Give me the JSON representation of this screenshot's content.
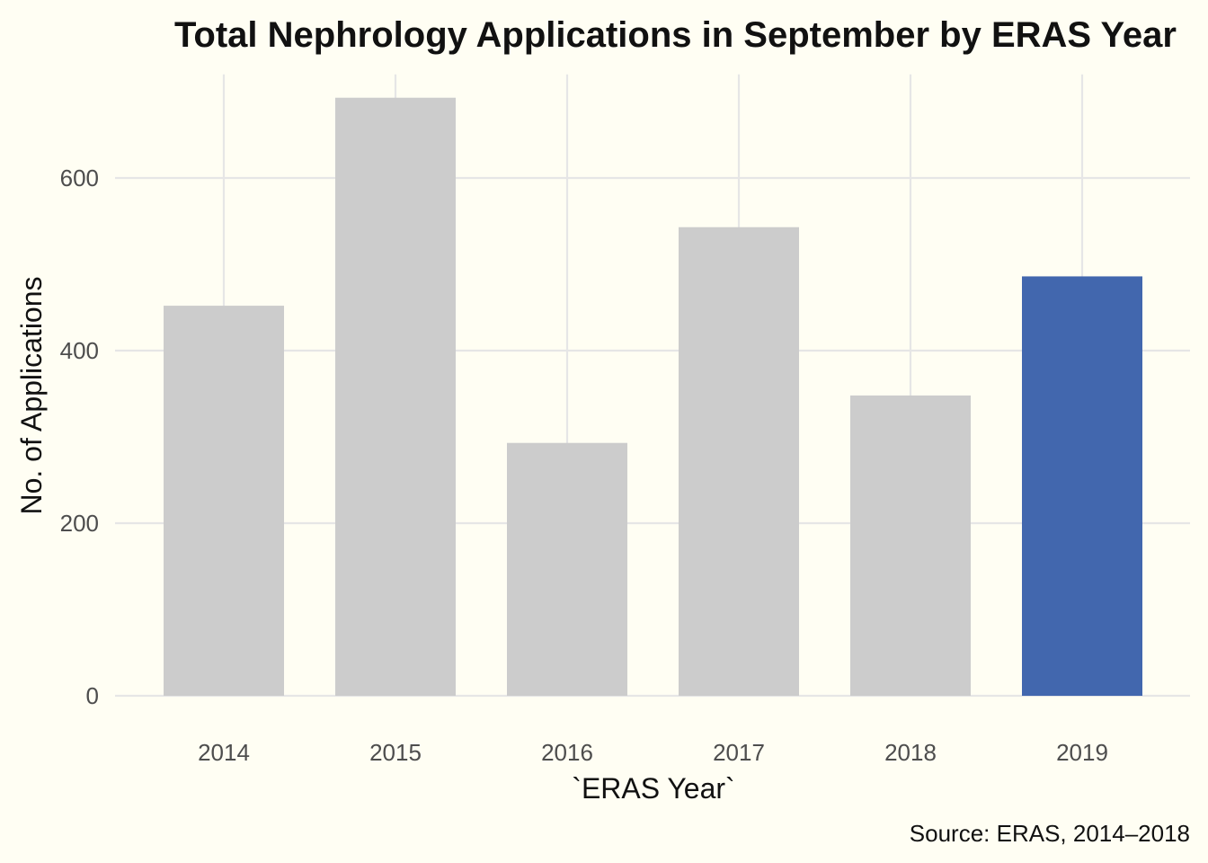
{
  "chart_data": {
    "type": "bar",
    "title": "Total Nephrology Applications in September by ERAS Year",
    "xlabel": "`ERAS Year`",
    "ylabel": "No. of Applications",
    "caption": "Source: ERAS, 2014–2018",
    "categories": [
      "2014",
      "2015",
      "2016",
      "2017",
      "2018",
      "2019"
    ],
    "values": [
      452,
      693,
      293,
      543,
      348,
      486
    ],
    "highlight_index": 5,
    "colors": {
      "default": "#CCCCCC",
      "highlight": "#4267AE"
    },
    "ylim": [
      0,
      720
    ],
    "yticks": [
      0,
      200,
      400,
      600
    ],
    "grid": true,
    "legend": "none"
  }
}
